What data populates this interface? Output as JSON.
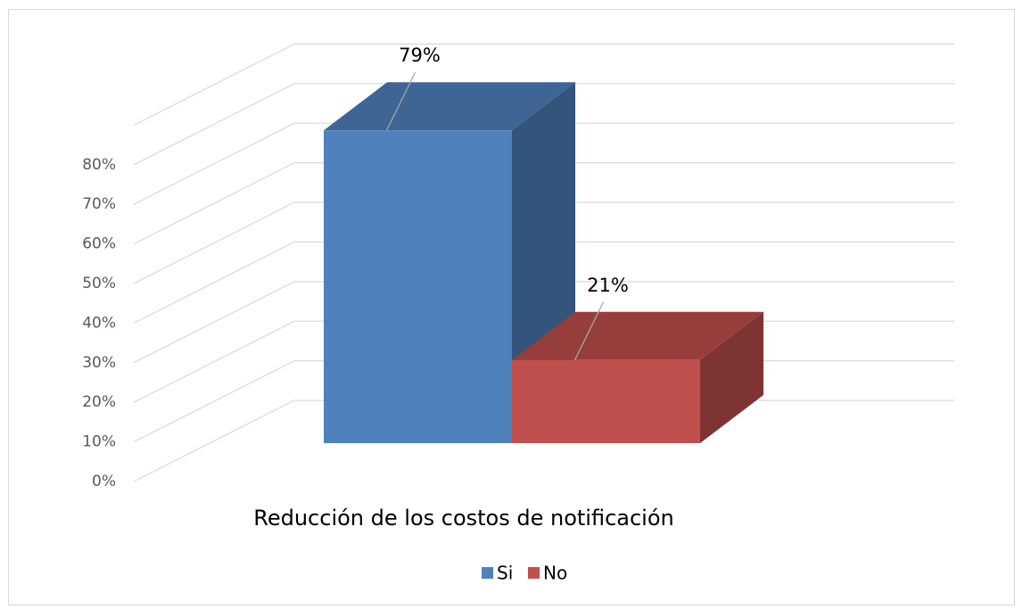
{
  "chart_data": {
    "type": "bar3d",
    "categories": [
      "Reducción de los costos de notificación"
    ],
    "series": [
      {
        "name": "Si",
        "color": "#4f81bd",
        "values": [
          79
        ],
        "value_labels": [
          "79%"
        ]
      },
      {
        "name": "No",
        "color": "#c0504d",
        "values": [
          21
        ],
        "value_labels": [
          "21%"
        ]
      }
    ],
    "ylim": [
      0,
      90
    ],
    "yticks": [
      {
        "value": 0,
        "label": "0%"
      },
      {
        "value": 10,
        "label": "10%"
      },
      {
        "value": 20,
        "label": "20%"
      },
      {
        "value": 30,
        "label": "30%"
      },
      {
        "value": 40,
        "label": "40%"
      },
      {
        "value": 50,
        "label": "50%"
      },
      {
        "value": 60,
        "label": "60%"
      },
      {
        "value": 70,
        "label": "70%"
      },
      {
        "value": 80,
        "label": "80%"
      }
    ],
    "grid": true,
    "legend": "bottom"
  }
}
